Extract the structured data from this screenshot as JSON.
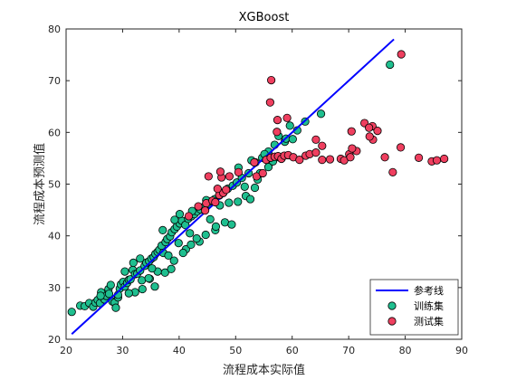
{
  "chart_data": {
    "type": "scatter",
    "title": "XGBoost",
    "xlabel": "流程成本实际值",
    "ylabel": "流程成本预测值",
    "xlim": [
      20,
      90
    ],
    "ylim": [
      20,
      80
    ],
    "xticks": [
      20,
      30,
      40,
      50,
      60,
      70,
      80,
      90
    ],
    "yticks": [
      20,
      30,
      40,
      50,
      60,
      70,
      80
    ],
    "grid": false,
    "legend_position": "bottom-right",
    "colors": {
      "line": "#0000ff",
      "train": "#1fbf8f",
      "test": "#ef3f5f",
      "marker_edge": "#000000"
    },
    "series": [
      {
        "name": "参考线",
        "kind": "line",
        "x": [
          21,
          78
        ],
        "y": [
          21,
          78
        ]
      },
      {
        "name": "训练集",
        "kind": "scatter",
        "points": [
          [
            21,
            25.3
          ],
          [
            22.5,
            26.5
          ],
          [
            23.3,
            26.4
          ],
          [
            24.1,
            27
          ],
          [
            24.8,
            26.3
          ],
          [
            25.2,
            27.1
          ],
          [
            25.6,
            27.6
          ],
          [
            26,
            27
          ],
          [
            26.2,
            29.1
          ],
          [
            26.8,
            27.7
          ],
          [
            27.1,
            28.4
          ],
          [
            27.5,
            29.7
          ],
          [
            27.9,
            30.5
          ],
          [
            28.2,
            27.3
          ],
          [
            28.6,
            27.1
          ],
          [
            28.8,
            26.1
          ],
          [
            29.2,
            28.1
          ],
          [
            29.5,
            29.8
          ],
          [
            29.7,
            30.6
          ],
          [
            30.1,
            31.1
          ],
          [
            30.4,
            30.2
          ],
          [
            30.8,
            30.9
          ],
          [
            31.1,
            31.5
          ],
          [
            31.4,
            31.6
          ],
          [
            31.8,
            33.4
          ],
          [
            32.2,
            32.6
          ],
          [
            32.6,
            32.7
          ],
          [
            33.1,
            33.3
          ],
          [
            33.4,
            31.4
          ],
          [
            33.9,
            34.2
          ],
          [
            34.2,
            34.8
          ],
          [
            34.7,
            35.1
          ],
          [
            35.1,
            35.6
          ],
          [
            35.5,
            35.9
          ],
          [
            35.8,
            36.5
          ],
          [
            36.2,
            36.9
          ],
          [
            36.5,
            37.3
          ],
          [
            36.9,
            38.1
          ],
          [
            37.2,
            36.7
          ],
          [
            37.6,
            38.8
          ],
          [
            37.9,
            39.4
          ],
          [
            38.4,
            39.9
          ],
          [
            38.7,
            40.7
          ],
          [
            39.2,
            41.3
          ],
          [
            39.6,
            41.8
          ],
          [
            40.1,
            42.4
          ],
          [
            40.5,
            42.9
          ],
          [
            41.1,
            42.1
          ],
          [
            41.6,
            43.3
          ],
          [
            42.2,
            43.8
          ],
          [
            42.7,
            44.2
          ],
          [
            43.2,
            44.7
          ],
          [
            43.8,
            45.1
          ],
          [
            44.4,
            45.6
          ],
          [
            45.1,
            46.2
          ],
          [
            45.7,
            46.7
          ],
          [
            46.3,
            47.1
          ],
          [
            47.1,
            47.8
          ],
          [
            47.8,
            48.3
          ],
          [
            48.6,
            49.1
          ],
          [
            49.5,
            49.7
          ],
          [
            50.2,
            50.3
          ],
          [
            51.1,
            51.2
          ],
          [
            52.3,
            52.1
          ],
          [
            53.5,
            54.2
          ],
          [
            54.7,
            55.1
          ],
          [
            55.8,
            56.3
          ],
          [
            56.9,
            57.6
          ],
          [
            57.6,
            59.3
          ],
          [
            58.7,
            58.2
          ],
          [
            59.6,
            61.3
          ],
          [
            60.9,
            60.4
          ],
          [
            62.3,
            62.1
          ],
          [
            65.1,
            63.6
          ],
          [
            77.3,
            73.1
          ],
          [
            35.7,
            30.2
          ],
          [
            32.2,
            29.1
          ],
          [
            33.5,
            29.7
          ],
          [
            34.8,
            31.7
          ],
          [
            37.5,
            32.9
          ],
          [
            38.6,
            33.6
          ],
          [
            39.1,
            35.2
          ],
          [
            41.2,
            37.4
          ],
          [
            40.7,
            36.7
          ],
          [
            42.1,
            38.3
          ],
          [
            43.6,
            38.9
          ],
          [
            44.7,
            40.2
          ],
          [
            46.4,
            41.1
          ],
          [
            48.1,
            42.6
          ],
          [
            49.3,
            42.2
          ],
          [
            50.4,
            46.6
          ],
          [
            51.8,
            47.7
          ],
          [
            52.6,
            47.1
          ],
          [
            53.4,
            49.3
          ],
          [
            54.3,
            52.1
          ],
          [
            55.8,
            53.3
          ],
          [
            57.2,
            55.2
          ],
          [
            58.9,
            58.8
          ],
          [
            39.2,
            43.1
          ],
          [
            40.1,
            44.2
          ],
          [
            42.3,
            44.8
          ],
          [
            43.1,
            39.5
          ],
          [
            45.5,
            43.2
          ],
          [
            46.5,
            41.8
          ],
          [
            47.2,
            45.9
          ],
          [
            48.8,
            46.4
          ],
          [
            36.2,
            33.1
          ],
          [
            35.2,
            33.7
          ],
          [
            34.6,
            31.8
          ],
          [
            31.1,
            28.9
          ],
          [
            29.2,
            28.6
          ],
          [
            27.6,
            28.8
          ],
          [
            26.1,
            28.4
          ],
          [
            44.8,
            46.9
          ],
          [
            41.9,
            40.5
          ],
          [
            51.6,
            49.5
          ],
          [
            53.9,
            50.9
          ],
          [
            56.6,
            54.4
          ],
          [
            60.1,
            58.7
          ],
          [
            50.5,
            53.2
          ],
          [
            52.8,
            54.6
          ],
          [
            55.1,
            55.8
          ],
          [
            38.1,
            36.2
          ],
          [
            37.1,
            41.1
          ],
          [
            39.9,
            38.6
          ],
          [
            33.1,
            35.6
          ],
          [
            31.9,
            34.8
          ],
          [
            30.4,
            33.1
          ]
        ]
      },
      {
        "name": "测试集",
        "kind": "scatter",
        "points": [
          [
            41.7,
            43.8
          ],
          [
            43.4,
            45.7
          ],
          [
            44.8,
            46.3
          ],
          [
            45.9,
            46.8
          ],
          [
            46.4,
            46.5
          ],
          [
            47.1,
            47.9
          ],
          [
            47.8,
            48.3
          ],
          [
            48.3,
            48.9
          ],
          [
            45.2,
            51.5
          ],
          [
            47.5,
            51.3
          ],
          [
            53.7,
            51.5
          ],
          [
            54.8,
            52.1
          ],
          [
            55.4,
            54.7
          ],
          [
            56.2,
            55.1
          ],
          [
            56.9,
            55.3
          ],
          [
            57.5,
            55.4
          ],
          [
            58.1,
            54.9
          ],
          [
            58.6,
            55.5
          ],
          [
            59.3,
            55.6
          ],
          [
            60.2,
            55.2
          ],
          [
            61.3,
            54.7
          ],
          [
            62.4,
            55.5
          ],
          [
            63.1,
            55.8
          ],
          [
            64.2,
            56.1
          ],
          [
            65.3,
            54.7
          ],
          [
            66.7,
            54.8
          ],
          [
            68.6,
            54.9
          ],
          [
            69.2,
            54.6
          ],
          [
            70.1,
            55.8
          ],
          [
            71.4,
            56.4
          ],
          [
            74.2,
            61.2
          ],
          [
            75.1,
            60.3
          ],
          [
            76.4,
            55.2
          ],
          [
            77.8,
            52.3
          ],
          [
            82.4,
            55.1
          ],
          [
            84.7,
            54.4
          ],
          [
            85.6,
            54.6
          ],
          [
            86.9,
            54.9
          ],
          [
            70.6,
            56.9
          ],
          [
            74.3,
            58.6
          ],
          [
            79.2,
            57.1
          ],
          [
            56.3,
            70.1
          ],
          [
            56.1,
            65.8
          ],
          [
            57.4,
            62.4
          ],
          [
            57.3,
            60.1
          ],
          [
            59.1,
            62.8
          ],
          [
            64.2,
            58.6
          ],
          [
            65.3,
            57.4
          ],
          [
            70.5,
            60.2
          ],
          [
            72.8,
            61.8
          ],
          [
            73.6,
            60.9
          ],
          [
            73.7,
            59.2
          ],
          [
            70.3,
            55.2
          ],
          [
            79.3,
            75.1
          ],
          [
            53.3,
            54.2
          ],
          [
            50.5,
            52.3
          ],
          [
            48.9,
            51.5
          ],
          [
            47.3,
            52.4
          ],
          [
            44.6,
            44.9
          ],
          [
            46.8,
            49.1
          ]
        ]
      }
    ]
  }
}
